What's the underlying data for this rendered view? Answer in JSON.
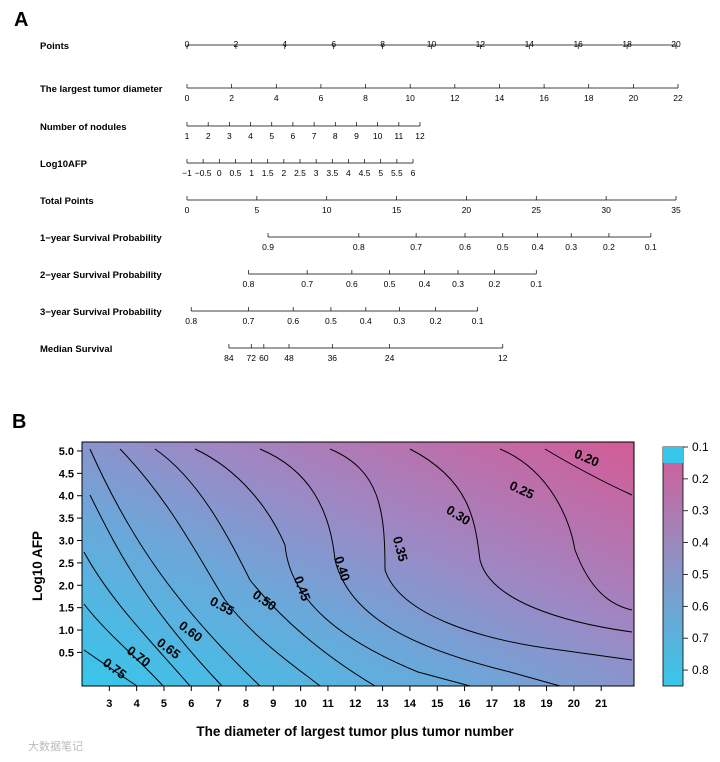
{
  "chart_data": [
    {
      "panel": "A",
      "type": "nomogram",
      "rows": [
        {
          "label": "Points",
          "ticks": [
            {
              "label": "0",
              "value": 0
            },
            {
              "label": "2",
              "value": 2
            },
            {
              "label": "4",
              "value": 4
            },
            {
              "label": "6",
              "value": 6
            },
            {
              "label": "8",
              "value": 8
            },
            {
              "label": "10",
              "value": 10
            },
            {
              "label": "12",
              "value": 12
            },
            {
              "label": "14",
              "value": 14
            },
            {
              "label": "16",
              "value": 16
            },
            {
              "label": "18",
              "value": 18
            },
            {
              "label": "20",
              "value": 20
            }
          ],
          "range": [
            0,
            20
          ],
          "above": true
        },
        {
          "label": "The largest tumor diameter",
          "ticks": [
            {
              "label": "0",
              "value": 0
            },
            {
              "label": "2",
              "value": 2
            },
            {
              "label": "4",
              "value": 4
            },
            {
              "label": "6",
              "value": 6
            },
            {
              "label": "8",
              "value": 8
            },
            {
              "label": "10",
              "value": 10
            },
            {
              "label": "12",
              "value": 12
            },
            {
              "label": "14",
              "value": 14
            },
            {
              "label": "16",
              "value": 16
            },
            {
              "label": "18",
              "value": 18
            },
            {
              "label": "20",
              "value": 20
            },
            {
              "label": "22",
              "value": 22
            }
          ],
          "range": [
            0,
            22
          ]
        },
        {
          "label": "Number of nodules",
          "ticks": [
            {
              "label": "1",
              "value": 1
            },
            {
              "label": "2",
              "value": 2
            },
            {
              "label": "3",
              "value": 3
            },
            {
              "label": "4",
              "value": 4
            },
            {
              "label": "5",
              "value": 5
            },
            {
              "label": "6",
              "value": 6
            },
            {
              "label": "7",
              "value": 7
            },
            {
              "label": "8",
              "value": 8
            },
            {
              "label": "9",
              "value": 9
            },
            {
              "label": "10",
              "value": 10
            },
            {
              "label": "11",
              "value": 11
            },
            {
              "label": "12",
              "value": 12
            }
          ],
          "range": [
            1,
            12
          ]
        },
        {
          "label": "Log10AFP",
          "ticks": [
            {
              "label": "−1",
              "value": -1
            },
            {
              "label": "−0.5",
              "value": -0.5
            },
            {
              "label": "0",
              "value": 0
            },
            {
              "label": "0.5",
              "value": 0.5
            },
            {
              "label": "1",
              "value": 1
            },
            {
              "label": "1.5",
              "value": 1.5
            },
            {
              "label": "2",
              "value": 2
            },
            {
              "label": "2.5",
              "value": 2.5
            },
            {
              "label": "3",
              "value": 3
            },
            {
              "label": "3.5",
              "value": 3.5
            },
            {
              "label": "4",
              "value": 4
            },
            {
              "label": "4.5",
              "value": 4.5
            },
            {
              "label": "5",
              "value": 5
            },
            {
              "label": "5.5",
              "value": 5.5
            },
            {
              "label": "6",
              "value": 6
            }
          ],
          "range": [
            -1,
            6
          ]
        },
        {
          "label": "Total Points",
          "ticks": [
            {
              "label": "0",
              "value": 0
            },
            {
              "label": "5",
              "value": 5
            },
            {
              "label": "10",
              "value": 10
            },
            {
              "label": "15",
              "value": 15
            },
            {
              "label": "20",
              "value": 20
            },
            {
              "label": "25",
              "value": 25
            },
            {
              "label": "30",
              "value": 30
            },
            {
              "label": "35",
              "value": 35
            }
          ],
          "range": [
            0,
            35
          ]
        },
        {
          "label": "1−year Survival Probability",
          "ticks": [
            {
              "label": "0.9",
              "total": 5.8
            },
            {
              "label": "0.8",
              "total": 12.3
            },
            {
              "label": "0.7",
              "total": 16.4
            },
            {
              "label": "0.6",
              "total": 19.9
            },
            {
              "label": "0.5",
              "total": 22.6
            },
            {
              "label": "0.4",
              "total": 25.1
            },
            {
              "label": "0.3",
              "total": 27.5
            },
            {
              "label": "0.2",
              "total": 30.2
            },
            {
              "label": "0.1",
              "total": 33.2
            }
          ],
          "range_total": [
            5.8,
            33.2
          ]
        },
        {
          "label": "2−year Survival Probability",
          "ticks": [
            {
              "label": "0.8",
              "total": 4.4
            },
            {
              "label": "0.7",
              "total": 8.6
            },
            {
              "label": "0.6",
              "total": 11.8
            },
            {
              "label": "0.5",
              "total": 14.5
            },
            {
              "label": "0.4",
              "total": 17.0
            },
            {
              "label": "0.3",
              "total": 19.4
            },
            {
              "label": "0.2",
              "total": 22.0
            },
            {
              "label": "0.1",
              "total": 25.0
            }
          ],
          "range_total": [
            4.4,
            25.0
          ]
        },
        {
          "label": "3−year Survival Probability",
          "ticks": [
            {
              "label": "0.8",
              "total": 0.3
            },
            {
              "label": "0.7",
              "total": 4.4
            },
            {
              "label": "0.6",
              "total": 7.6
            },
            {
              "label": "0.5",
              "total": 10.3
            },
            {
              "label": "0.4",
              "total": 12.8
            },
            {
              "label": "0.3",
              "total": 15.2
            },
            {
              "label": "0.2",
              "total": 17.8
            },
            {
              "label": "0.1",
              "total": 20.8
            }
          ],
          "range_total": [
            0.3,
            20.8
          ]
        },
        {
          "label": "Median Survival",
          "ticks": [
            {
              "label": "84",
              "total": 3.0
            },
            {
              "label": "72",
              "total": 4.6
            },
            {
              "label": "60",
              "total": 5.5
            },
            {
              "label": "48",
              "total": 7.3
            },
            {
              "label": "36",
              "total": 10.4
            },
            {
              "label": "24",
              "total": 14.5
            },
            {
              "label": "12",
              "total": 22.6
            }
          ],
          "range_total": [
            3.0,
            22.6
          ]
        }
      ]
    },
    {
      "panel": "B",
      "type": "contour",
      "xlabel": "The diameter of largest tumor plus tumor number",
      "ylabel": "Log10 AFP",
      "xlim": [
        2,
        22.2
      ],
      "ylim": [
        -0.25,
        5.2
      ],
      "x_ticks": [
        3,
        4,
        5,
        6,
        7,
        8,
        9,
        10,
        11,
        12,
        13,
        14,
        15,
        16,
        17,
        18,
        19,
        20,
        21
      ],
      "y_ticks": [
        "0.5",
        "1.0",
        "1.5",
        "2.0",
        "2.5",
        "3.0",
        "3.5",
        "4.0",
        "4.5",
        "5.0"
      ],
      "contour_levels": [
        0.75,
        0.7,
        0.65,
        0.6,
        0.55,
        0.5,
        0.45,
        0.4,
        0.35,
        0.3,
        0.25,
        0.2
      ],
      "contour_labels": [
        "0.75",
        "0.70",
        "0.65",
        "0.60",
        "0.55",
        "0.50",
        "0.45",
        "0.40",
        "0.35",
        "0.30",
        "0.25",
        "0.20"
      ],
      "colorbar_ticks": [
        "0.1",
        "0.2",
        "0.3",
        "0.4",
        "0.5",
        "0.6",
        "0.7",
        "0.8"
      ],
      "color_low": "#cc5d95",
      "color_mid": "#8d93c6",
      "color_high": "#38c6ea"
    }
  ],
  "panel_labels": {
    "a": "A",
    "b": "B"
  },
  "watermark": "大数据笔记"
}
